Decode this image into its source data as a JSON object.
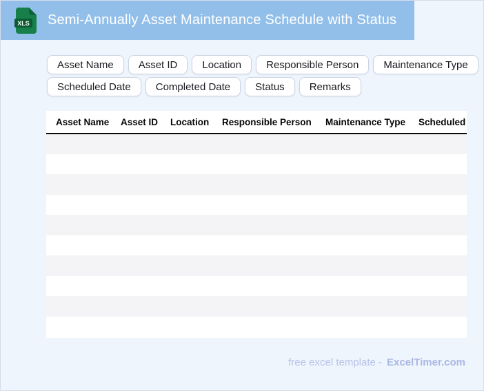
{
  "header": {
    "title": "Semi-Annually Asset Maintenance Schedule with Status",
    "icon": {
      "label": "XLS"
    }
  },
  "chips": {
    "row1": [
      "Asset Name",
      "Asset ID",
      "Location",
      "Responsible Person",
      "Maintenance Type"
    ],
    "row2": [
      "Scheduled Date",
      "Completed Date",
      "Status",
      "Remarks"
    ]
  },
  "table": {
    "columns": [
      "Asset Name",
      "Asset ID",
      "Location",
      "Responsible Person",
      "Maintenance Type",
      "Scheduled Date"
    ],
    "empty_row_count": 10
  },
  "footer": {
    "label": "free excel template -",
    "brand": "ExcelTimer.com"
  },
  "colors": {
    "page_bg": "#eef5fd",
    "page_border": "#d6dde9",
    "header_bg": "#92bfe9",
    "header_title": "#ffffff",
    "icon_body": "#17804a",
    "icon_band": "#0b5c33",
    "chip_border": "#ccd4e2",
    "chip_text": "#17191e",
    "table_stripe": "#f4f4f6",
    "table_header_line": "#0a0a0a",
    "footer_text": "#b8c3e9",
    "footer_brand": "#a9b7e4"
  }
}
